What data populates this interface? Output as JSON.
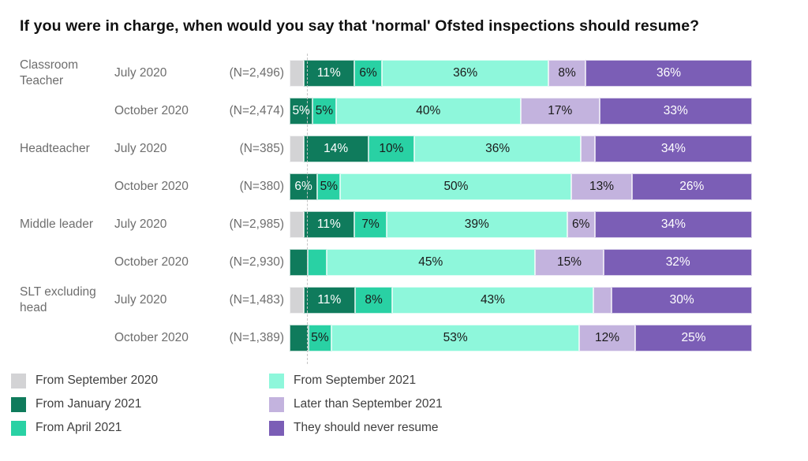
{
  "chart_data": {
    "type": "bar",
    "orientation": "horizontal_stacked",
    "title": "If you were in charge, when would you say that 'normal' Ofsted inspections should resume?",
    "unit": "%",
    "xlim": [
      0,
      100
    ],
    "legend_position": "bottom",
    "axis_style": "dashed-baseline-left",
    "series": [
      {
        "name": "From September 2020",
        "color": "#d3d3d5",
        "label_color": "#1a1a1a"
      },
      {
        "name": "From January 2021",
        "color": "#0f7b5c",
        "label_color": "#ffffff"
      },
      {
        "name": "From April 2021",
        "color": "#29d1a4",
        "label_color": "#1a1a1a"
      },
      {
        "name": "From September 2021",
        "color": "#8ef7db",
        "label_color": "#1a1a1a"
      },
      {
        "name": "Later than September 2021",
        "color": "#c3b3de",
        "label_color": "#1a1a1a"
      },
      {
        "name": "They should never resume",
        "color": "#7b5eb6",
        "label_color": "#ffffff"
      }
    ],
    "groups": [
      {
        "label": "Classroom Teacher",
        "rows": [
          {
            "wave": "July 2020",
            "n": "(N=2,496)",
            "values": [
              3,
              11,
              6,
              36,
              8,
              36
            ],
            "labels": [
              "",
              "11%",
              "6%",
              "36%",
              "8%",
              "36%"
            ]
          },
          {
            "wave": "October 2020",
            "n": "(N=2,474)",
            "values": [
              0,
              5,
              5,
              40,
              17,
              33
            ],
            "labels": [
              "",
              "5%",
              "5%",
              "40%",
              "17%",
              "33%"
            ]
          }
        ]
      },
      {
        "label": "Headteacher",
        "rows": [
          {
            "wave": "July 2020",
            "n": "(N=385)",
            "values": [
              3,
              14,
              10,
              36,
              3,
              34
            ],
            "labels": [
              "",
              "14%",
              "10%",
              "36%",
              "",
              "34%"
            ]
          },
          {
            "wave": "October 2020",
            "n": "(N=380)",
            "values": [
              0,
              6,
              5,
              50,
              13,
              26
            ],
            "labels": [
              "",
              "6%",
              "5%",
              "50%",
              "13%",
              "26%"
            ]
          }
        ]
      },
      {
        "label": "Middle leader",
        "rows": [
          {
            "wave": "July 2020",
            "n": "(N=2,985)",
            "values": [
              3,
              11,
              7,
              39,
              6,
              34
            ],
            "labels": [
              "",
              "11%",
              "7%",
              "39%",
              "6%",
              "34%"
            ]
          },
          {
            "wave": "October 2020",
            "n": "(N=2,930)",
            "values": [
              0,
              4,
              4,
              45,
              15,
              32
            ],
            "labels": [
              "",
              "",
              "",
              "45%",
              "15%",
              "32%"
            ]
          }
        ]
      },
      {
        "label": "SLT excluding head",
        "rows": [
          {
            "wave": "July 2020",
            "n": "(N=1,483)",
            "values": [
              3,
              11,
              8,
              43,
              4,
              30
            ],
            "labels": [
              "",
              "11%",
              "8%",
              "43%",
              "",
              "30%"
            ]
          },
          {
            "wave": "October 2020",
            "n": "(N=1,389)",
            "values": [
              0,
              4,
              5,
              53,
              12,
              25
            ],
            "labels": [
              "",
              "",
              "5%",
              "53%",
              "12%",
              "25%"
            ]
          }
        ]
      }
    ]
  }
}
